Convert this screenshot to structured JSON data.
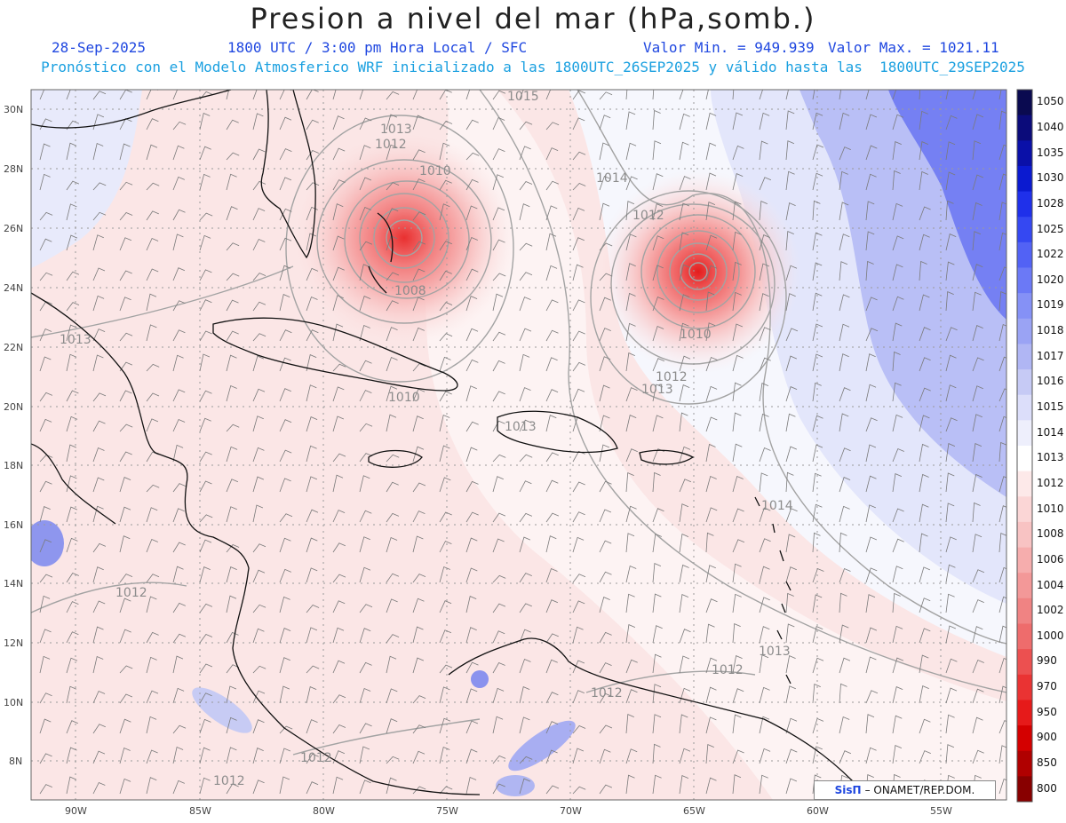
{
  "header": {
    "title": "Presion a nivel del mar (hPa,somb.)",
    "date": "28-Sep-2025",
    "time": "1800 UTC / 3:00 pm Hora Local / SFC",
    "min_label": "Valor Min. = 949.939",
    "max_label": "Valor Max. = 1021.11",
    "subtitle": "Pronóstico con el Modelo Atmosferico WRF inicializado a las 1800UTC_26SEP2025 y válido hasta las  1800UTC_29SEP2025"
  },
  "axes": {
    "lat_ticks": [
      "30N",
      "28N",
      "26N",
      "24N",
      "22N",
      "20N",
      "18N",
      "16N",
      "14N",
      "12N",
      "10N",
      "8N"
    ],
    "lon_ticks": [
      "90W",
      "85W",
      "80W",
      "75W",
      "70W",
      "65W",
      "60W",
      "55W"
    ]
  },
  "contour_labels": [
    "1015",
    "1013",
    "1012",
    "1010",
    "1014",
    "1012",
    "1008",
    "1010",
    "1013",
    "1012",
    "1013",
    "1010",
    "1013",
    "1014",
    "1012",
    "1013",
    "1012",
    "1012",
    "1012",
    "1012"
  ],
  "legend": {
    "levels": [
      "1050",
      "1040",
      "1035",
      "1030",
      "1028",
      "1025",
      "1022",
      "1020",
      "1019",
      "1018",
      "1017",
      "1016",
      "1015",
      "1014",
      "1013",
      "1012",
      "1010",
      "1008",
      "1006",
      "1004",
      "1002",
      "1000",
      "990",
      "970",
      "950",
      "900",
      "850",
      "800"
    ],
    "colors": [
      "#0a0a50",
      "#0b0b7a",
      "#0a10a8",
      "#0b1ad0",
      "#1f30ea",
      "#3548f2",
      "#5262f5",
      "#6b79f6",
      "#8591f6",
      "#9aa3f4",
      "#b0b6f4",
      "#c6caf5",
      "#dcdefa",
      "#eeeffc",
      "#ffffff",
      "#fde9e9",
      "#fbd6d6",
      "#f8c3c3",
      "#f6adad",
      "#f39898",
      "#f08383",
      "#ee6c6c",
      "#ec5050",
      "#ea3333",
      "#e61a1a",
      "#d40000",
      "#b00000",
      "#880000"
    ]
  },
  "credit": {
    "brand": "SisΠ",
    "text": "– ONAMET/REP.DOM."
  }
}
